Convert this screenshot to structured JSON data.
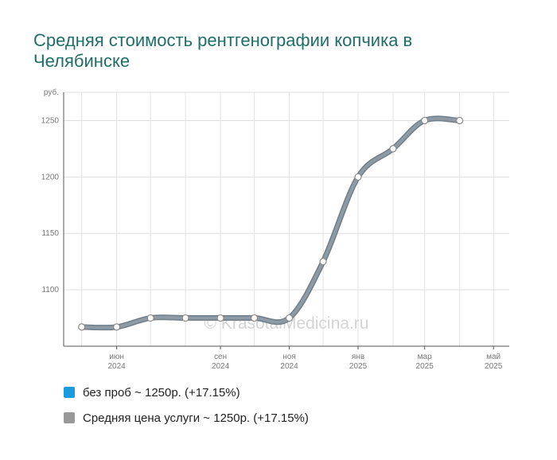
{
  "chart_data": {
    "type": "line",
    "title": "Средняя стоимость рентгенографии копчика в Челябинске",
    "y_unit": "руб.",
    "ylim": [
      1050,
      1275
    ],
    "yticks": [
      1100,
      1150,
      1200,
      1250
    ],
    "xlim": [
      "2024-04-15",
      "2025-05-15"
    ],
    "x_ticks": [
      {
        "date": "2024-06-01",
        "month": "июн",
        "year": "2024"
      },
      {
        "date": "2024-09-01",
        "month": "сен",
        "year": "2024"
      },
      {
        "date": "2024-11-01",
        "month": "ноя",
        "year": "2024"
      },
      {
        "date": "2025-01-01",
        "month": "янв",
        "year": "2025"
      },
      {
        "date": "2025-03-01",
        "month": "мар",
        "year": "2025"
      },
      {
        "date": "2025-05-01",
        "month": "май",
        "year": "2025"
      }
    ],
    "series": [
      {
        "name": "Средняя цена услуги ~ 1250р. (+17.15%)",
        "color": "#8e9ba5",
        "points": [
          {
            "x": "2024-05-01",
            "y": 1067
          },
          {
            "x": "2024-06-01",
            "y": 1067
          },
          {
            "x": "2024-07-01",
            "y": 1075
          },
          {
            "x": "2024-08-01",
            "y": 1075
          },
          {
            "x": "2024-09-01",
            "y": 1075
          },
          {
            "x": "2024-10-01",
            "y": 1075
          },
          {
            "x": "2024-11-01",
            "y": 1075
          },
          {
            "x": "2024-12-01",
            "y": 1125
          },
          {
            "x": "2025-01-01",
            "y": 1200
          },
          {
            "x": "2025-02-01",
            "y": 1225
          },
          {
            "x": "2025-03-01",
            "y": 1250
          },
          {
            "x": "2025-04-01",
            "y": 1250
          }
        ]
      }
    ],
    "legend": [
      {
        "label": "без проб ~ 1250р. (+17.15%)",
        "color": "#1a9be0"
      },
      {
        "label": "Средняя цена услуги ~ 1250р. (+17.15%)",
        "color": "#999999"
      }
    ],
    "watermark": "© KrasotaiMedicina.ru",
    "grid": true
  }
}
